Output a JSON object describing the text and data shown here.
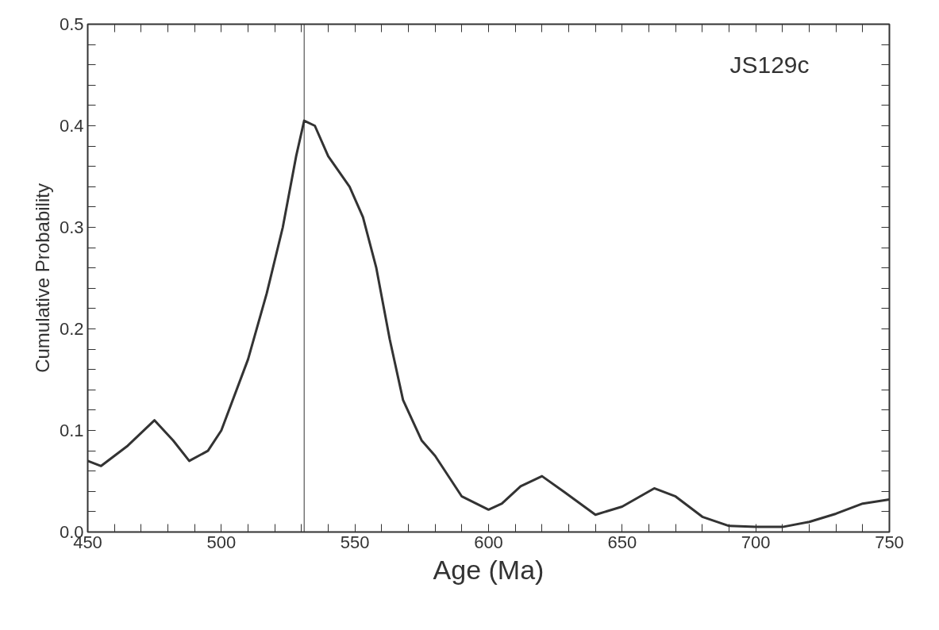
{
  "chart_data": {
    "type": "line",
    "xlabel": "Age (Ma)",
    "ylabel": "Cumulative Probability",
    "annotations": [
      "JS129c"
    ],
    "series": [
      {
        "color": "#333333",
        "x": [
          450,
          455,
          465,
          475,
          482,
          488,
          495,
          500,
          510,
          517,
          523,
          528,
          531,
          535,
          540,
          548,
          553,
          558,
          563,
          568,
          575,
          580,
          590,
          600,
          605,
          612,
          620,
          628,
          640,
          650,
          662,
          670,
          680,
          690,
          700,
          710,
          720,
          730,
          740,
          750
        ],
        "values": [
          0.07,
          0.065,
          0.085,
          0.11,
          0.09,
          0.07,
          0.08,
          0.1,
          0.17,
          0.235,
          0.3,
          0.37,
          0.405,
          0.4,
          0.37,
          0.34,
          0.31,
          0.26,
          0.19,
          0.13,
          0.09,
          0.075,
          0.035,
          0.022,
          0.028,
          0.045,
          0.055,
          0.04,
          0.017,
          0.025,
          0.043,
          0.035,
          0.015,
          0.006,
          0.005,
          0.005,
          0.01,
          0.018,
          0.028,
          0.032
        ]
      }
    ],
    "ref_lines": [
      {
        "axis": "x",
        "value": 531,
        "color": "#333333"
      }
    ],
    "xlim": [
      450,
      750
    ],
    "ylim": [
      0,
      0.5
    ],
    "xticks": [
      450,
      {
        "value": 460,
        "label": null
      },
      {
        "value": 470,
        "label": null
      },
      {
        "value": 480,
        "label": null
      },
      {
        "value": 490,
        "label": null
      },
      500,
      {
        "value": 510,
        "label": null
      },
      {
        "value": 520,
        "label": null
      },
      {
        "value": 530,
        "label": null
      },
      {
        "value": 540,
        "label": null
      },
      550,
      {
        "value": 560,
        "label": null
      },
      {
        "value": 570,
        "label": null
      },
      {
        "value": 580,
        "label": null
      },
      {
        "value": 590,
        "label": null
      },
      600,
      {
        "value": 610,
        "label": null
      },
      {
        "value": 620,
        "label": null
      },
      {
        "value": 630,
        "label": null
      },
      {
        "value": 640,
        "label": null
      },
      650,
      {
        "value": 660,
        "label": null
      },
      {
        "value": 670,
        "label": null
      },
      {
        "value": 680,
        "label": null
      },
      {
        "value": 690,
        "label": null
      },
      700,
      {
        "value": 710,
        "label": null
      },
      {
        "value": 720,
        "label": null
      },
      {
        "value": 730,
        "label": null
      },
      {
        "value": 740,
        "label": null
      },
      750
    ],
    "yticks": [
      {
        "value": 0,
        "label": "0.0"
      },
      {
        "value": 0.02,
        "label": null
      },
      {
        "value": 0.04,
        "label": null
      },
      {
        "value": 0.06,
        "label": null
      },
      {
        "value": 0.08,
        "label": null
      },
      0.1,
      {
        "value": 0.12,
        "label": null
      },
      {
        "value": 0.14,
        "label": null
      },
      {
        "value": 0.16,
        "label": null
      },
      {
        "value": 0.18,
        "label": null
      },
      0.2,
      {
        "value": 0.22,
        "label": null
      },
      {
        "value": 0.24,
        "label": null
      },
      {
        "value": 0.26,
        "label": null
      },
      {
        "value": 0.28,
        "label": null
      },
      0.3,
      {
        "value": 0.32,
        "label": null
      },
      {
        "value": 0.34,
        "label": null
      },
      {
        "value": 0.36,
        "label": null
      },
      {
        "value": 0.38,
        "label": null
      },
      0.4,
      {
        "value": 0.42,
        "label": null
      },
      {
        "value": 0.44,
        "label": null
      },
      {
        "value": 0.46,
        "label": null
      },
      {
        "value": 0.48,
        "label": null
      },
      0.5
    ],
    "grid": false,
    "marker": "none",
    "line_style": "solid"
  }
}
